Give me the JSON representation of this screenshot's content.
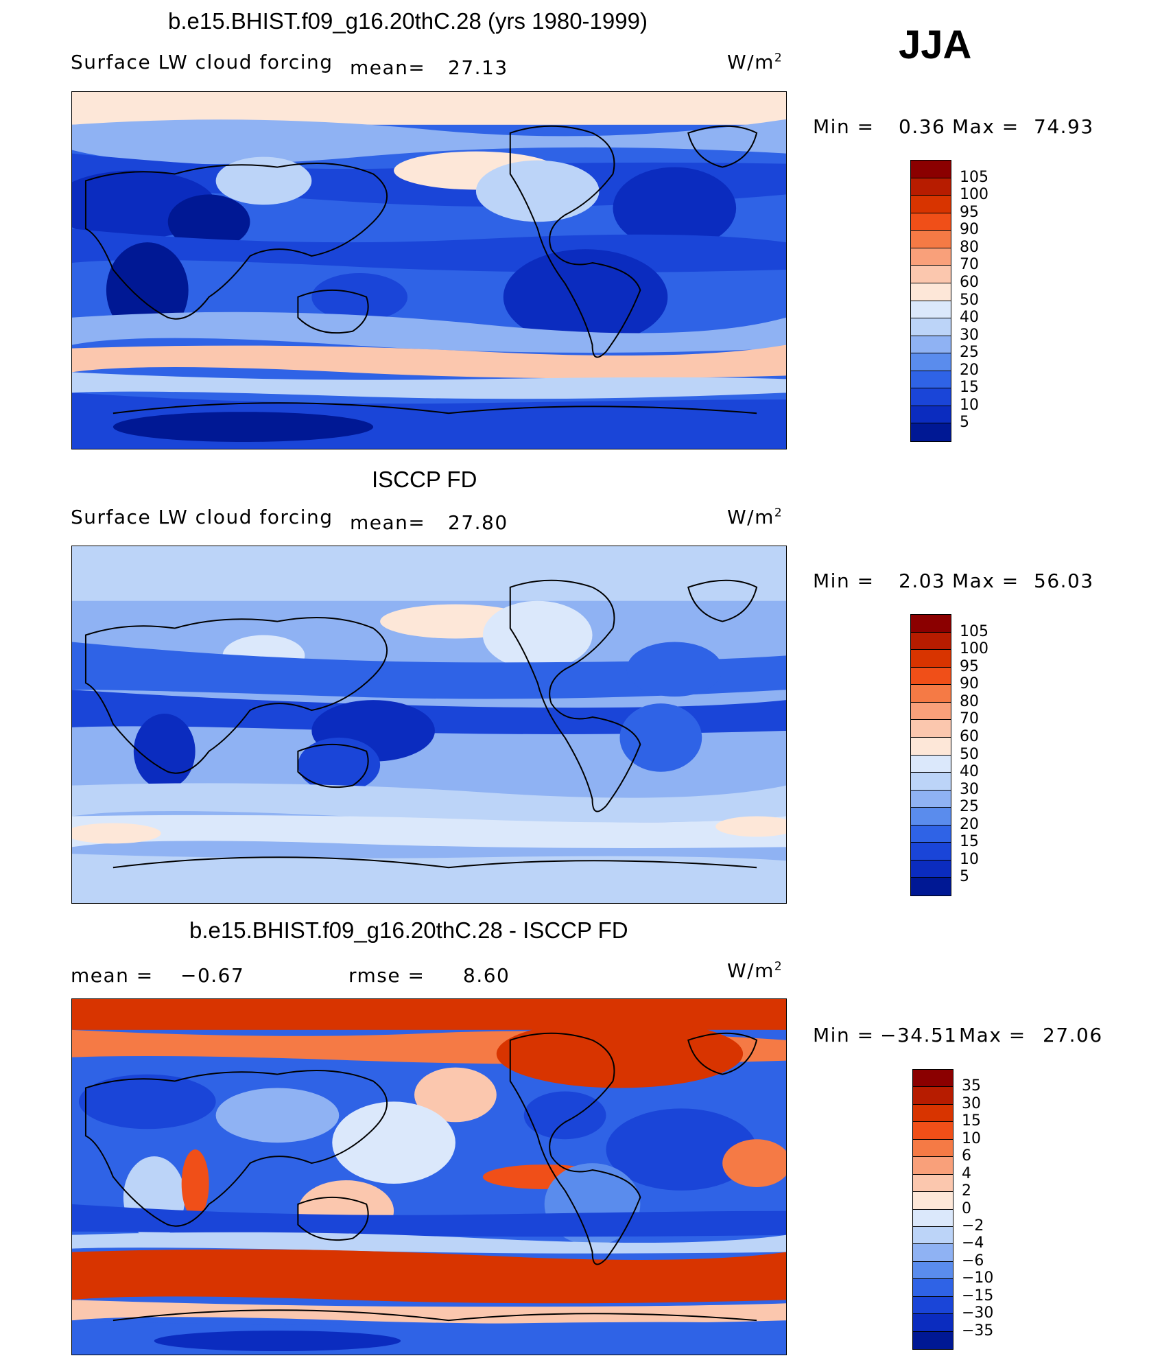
{
  "season": "JJA",
  "unit_base": "W/m",
  "unit_sup": "2",
  "panels": [
    {
      "title": "b.e15.BHIST.f09_g16.20thC.28 (yrs 1980-1999)",
      "variable": "Surface LW cloud forcing",
      "stat1_label": "mean=",
      "stat1_value": "27.13",
      "min_label": "Min  =",
      "min_value": "0.36",
      "max_label": "Max  =",
      "max_value": "74.93",
      "colorbar": {
        "labels": [
          "105",
          "100",
          "95",
          "90",
          "80",
          "70",
          "60",
          "50",
          "40",
          "30",
          "25",
          "20",
          "15",
          "10",
          "5"
        ],
        "colors": [
          "#8b0000",
          "#b71c00",
          "#d83400",
          "#f04f18",
          "#f57a45",
          "#f9a07a",
          "#fbc7ae",
          "#fde7d8",
          "#dbe8fb",
          "#bcd4f8",
          "#8fb2f3",
          "#5a8ced",
          "#2f63e6",
          "#1a45d8",
          "#0b2cbf",
          "#001894"
        ]
      }
    },
    {
      "title": "ISCCP FD",
      "variable": "Surface LW cloud forcing",
      "stat1_label": "mean=",
      "stat1_value": "27.80",
      "min_label": "Min  =",
      "min_value": "2.03",
      "max_label": "Max  =",
      "max_value": "56.03",
      "colorbar": {
        "labels": [
          "105",
          "100",
          "95",
          "90",
          "80",
          "70",
          "60",
          "50",
          "40",
          "30",
          "25",
          "20",
          "15",
          "10",
          "5"
        ],
        "colors": [
          "#8b0000",
          "#b71c00",
          "#d83400",
          "#f04f18",
          "#f57a45",
          "#f9a07a",
          "#fbc7ae",
          "#fde7d8",
          "#dbe8fb",
          "#bcd4f8",
          "#8fb2f3",
          "#5a8ced",
          "#2f63e6",
          "#1a45d8",
          "#0b2cbf",
          "#001894"
        ]
      }
    },
    {
      "title": "b.e15.BHIST.f09_g16.20thC.28 - ISCCP FD",
      "stat1_label": "mean  =",
      "stat1_value": "−0.67",
      "stat2_label": "rmse  =",
      "stat2_value": "8.60",
      "min_label": "Min  =",
      "min_value": "−34.51",
      "max_label": "Max  =",
      "max_value": "27.06",
      "colorbar": {
        "labels": [
          "35",
          "30",
          "15",
          "10",
          "6",
          "4",
          "2",
          "0",
          "−2",
          "−4",
          "−6",
          "−10",
          "−15",
          "−30",
          "−35"
        ],
        "colors": [
          "#8b0000",
          "#b71c00",
          "#d83400",
          "#f04f18",
          "#f57a45",
          "#f9a07a",
          "#fbc7ae",
          "#fde7d8",
          "#dbe8fb",
          "#bcd4f8",
          "#8fb2f3",
          "#5a8ced",
          "#2f63e6",
          "#1a45d8",
          "#0b2cbf",
          "#001894"
        ]
      }
    }
  ]
}
